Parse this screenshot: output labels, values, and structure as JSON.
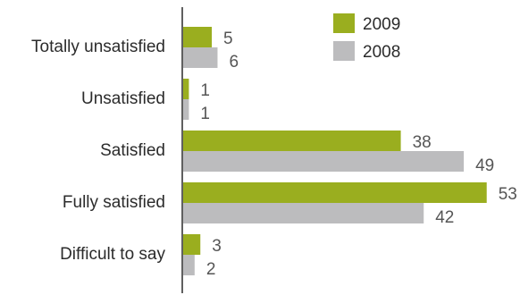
{
  "chart_data": {
    "type": "bar",
    "orientation": "horizontal",
    "categories": [
      "Totally unsatisfied",
      "Unsatisfied",
      "Satisfied",
      "Fully satisfied",
      "Difficult to say"
    ],
    "series": [
      {
        "name": "2009",
        "values": [
          5,
          1,
          38,
          53,
          3
        ],
        "color": "#9aae1f"
      },
      {
        "name": "2008",
        "values": [
          6,
          1,
          49,
          42,
          2
        ],
        "color": "#bcbcbe"
      }
    ],
    "legend_position": "top-right",
    "grid": false
  }
}
